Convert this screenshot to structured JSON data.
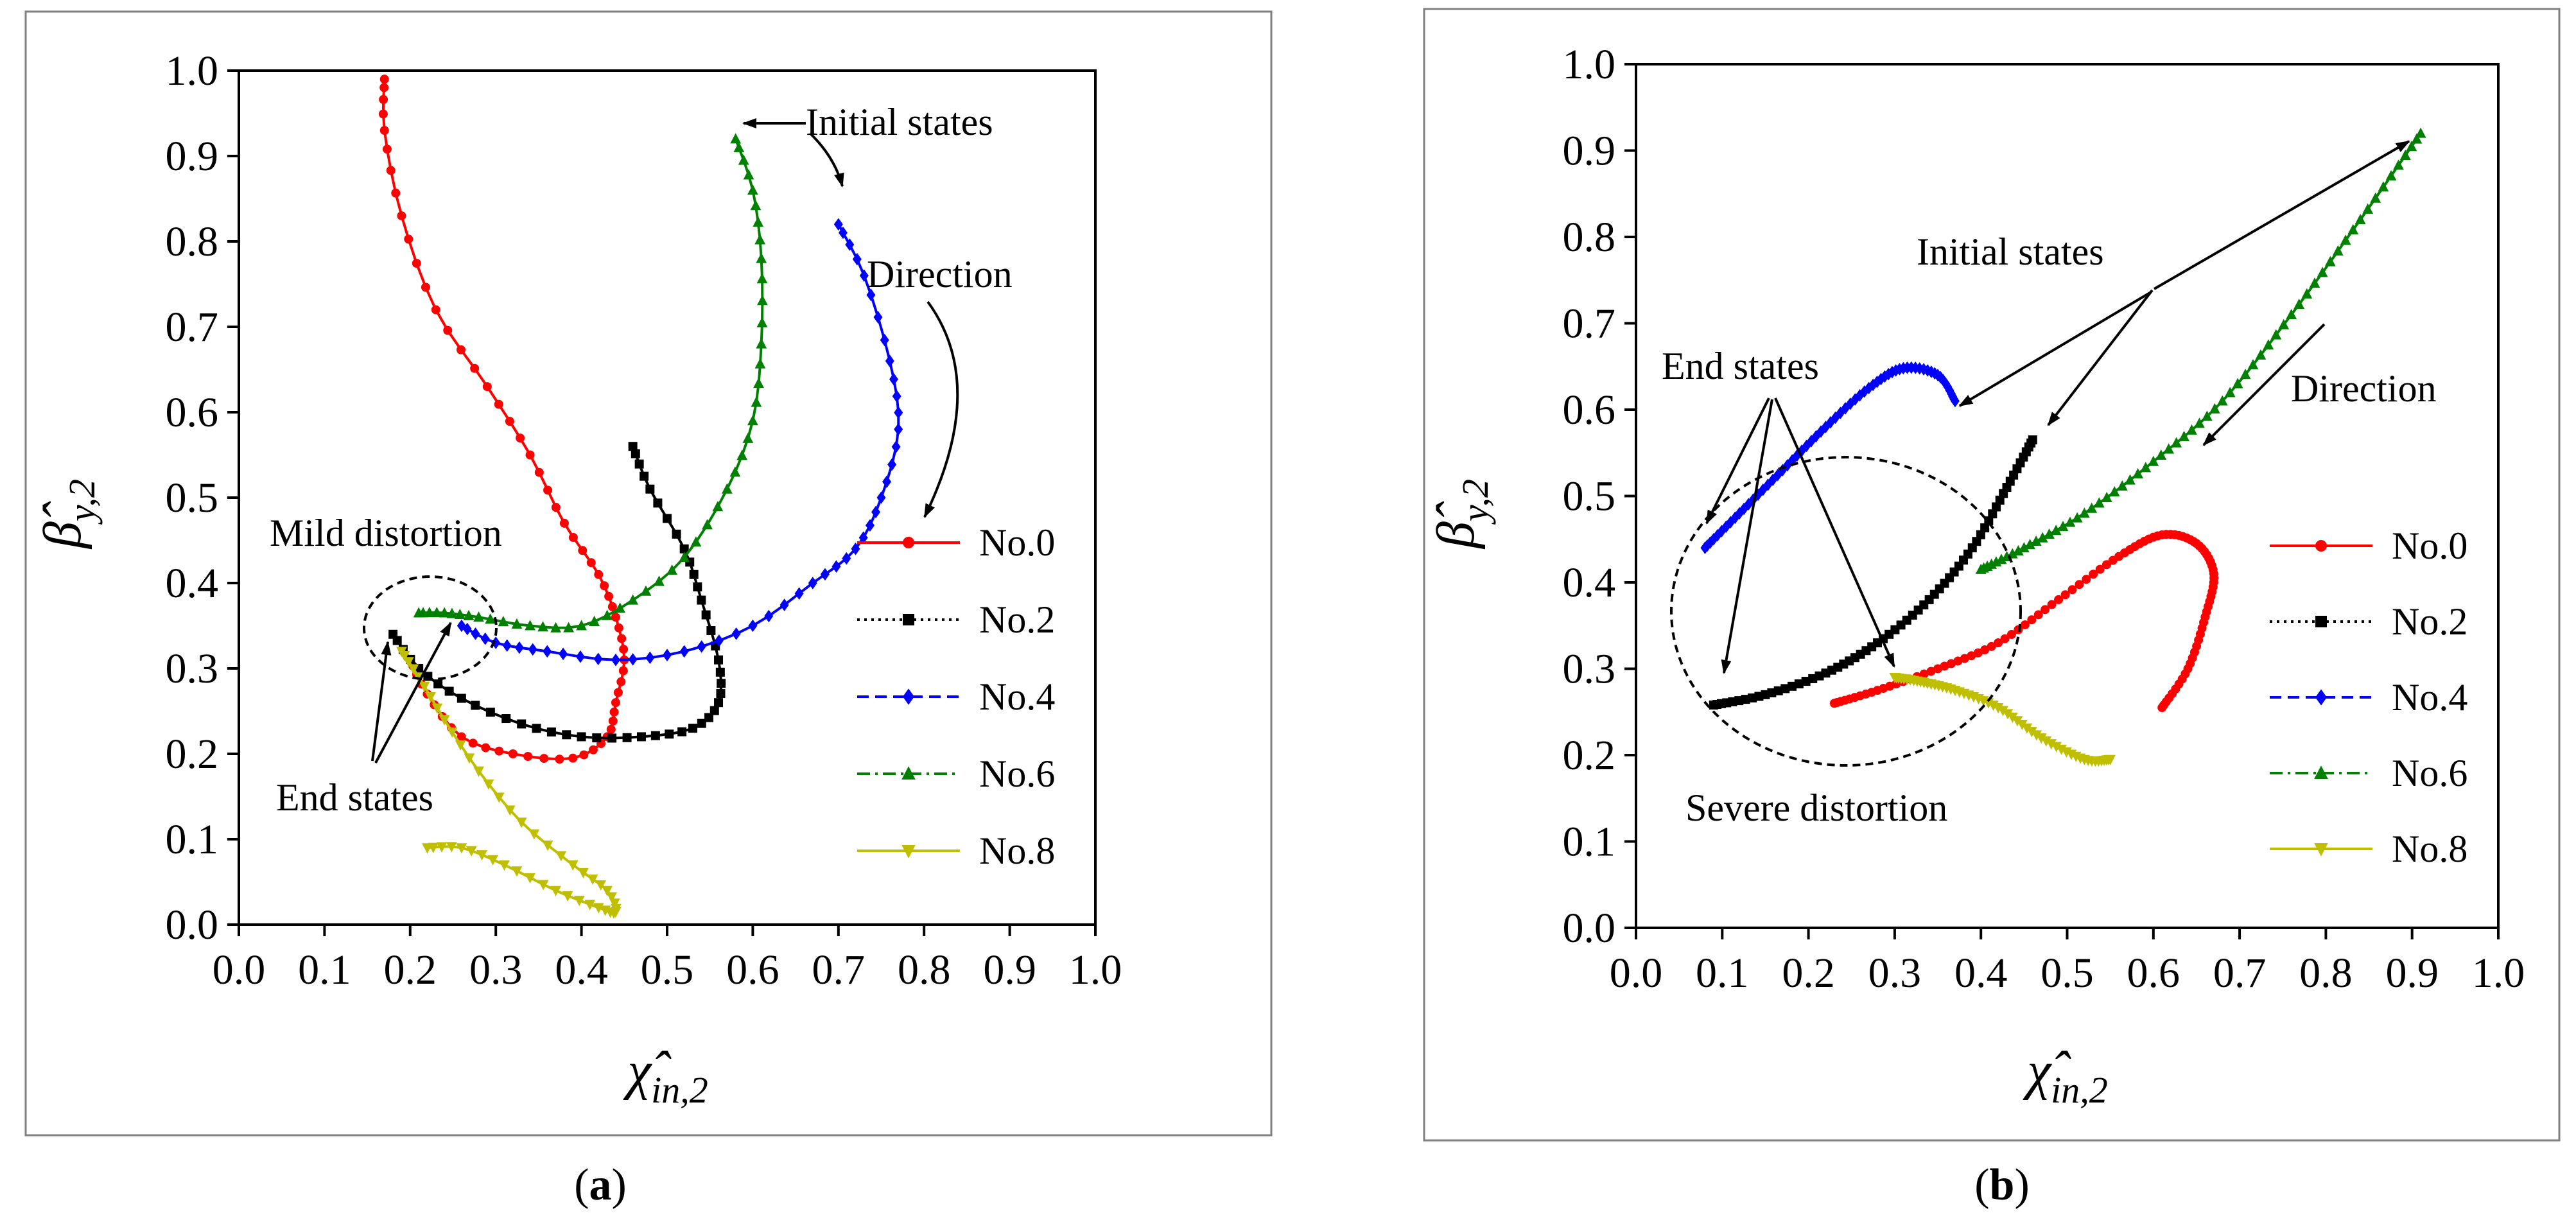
{
  "chart_data": [
    {
      "id": "a",
      "type": "line",
      "caption_open": "(",
      "caption_letter": "a",
      "caption_close": ")",
      "xlabel": "χ̂in,2",
      "ylabel": "β̂y,2",
      "xlim": [
        0.0,
        1.0
      ],
      "ylim": [
        0.0,
        1.0
      ],
      "xticks": [
        0.0,
        0.1,
        0.2,
        0.3,
        0.4,
        0.5,
        0.6,
        0.7,
        0.8,
        0.9,
        1.0
      ],
      "yticks": [
        0.0,
        0.1,
        0.2,
        0.3,
        0.4,
        0.5,
        0.6,
        0.7,
        0.8,
        0.9,
        1.0
      ],
      "xtick_labels": [
        "0.0",
        "0.1",
        "0.2",
        "0.3",
        "0.4",
        "0.5",
        "0.6",
        "0.7",
        "0.8",
        "0.9",
        "1.0"
      ],
      "ytick_labels": [
        "0.0",
        "0.1",
        "0.2",
        "0.3",
        "0.4",
        "0.5",
        "0.6",
        "0.7",
        "0.8",
        "0.9",
        "1.0"
      ],
      "legend_position": "right",
      "series": [
        {
          "name": "No.0",
          "color": "#ff0000",
          "marker": "circle",
          "dash": "solid",
          "points": [
            [
              0.17,
              0.99
            ],
            [
              0.17,
              0.93
            ],
            [
              0.19,
              0.83
            ],
            [
              0.23,
              0.72
            ],
            [
              0.29,
              0.63
            ],
            [
              0.34,
              0.55
            ],
            [
              0.38,
              0.47
            ],
            [
              0.42,
              0.41
            ],
            [
              0.44,
              0.36
            ],
            [
              0.45,
              0.31
            ],
            [
              0.44,
              0.26
            ],
            [
              0.43,
              0.22
            ],
            [
              0.39,
              0.195
            ],
            [
              0.32,
              0.2
            ],
            [
              0.26,
              0.22
            ],
            [
              0.22,
              0.27
            ],
            [
              0.2,
              0.31
            ]
          ]
        },
        {
          "name": "No.2",
          "color": "#000000",
          "marker": "square",
          "dash": "dotted",
          "points": [
            [
              0.46,
              0.56
            ],
            [
              0.48,
              0.51
            ],
            [
              0.52,
              0.44
            ],
            [
              0.54,
              0.38
            ],
            [
              0.56,
              0.31
            ],
            [
              0.56,
              0.26
            ],
            [
              0.53,
              0.23
            ],
            [
              0.47,
              0.22
            ],
            [
              0.4,
              0.22
            ],
            [
              0.33,
              0.235
            ],
            [
              0.26,
              0.265
            ],
            [
              0.21,
              0.3
            ],
            [
              0.18,
              0.34
            ]
          ]
        },
        {
          "name": "No.4",
          "color": "#0000ff",
          "marker": "diamond",
          "dash": "dashed",
          "points": [
            [
              0.7,
              0.82
            ],
            [
              0.73,
              0.76
            ],
            [
              0.76,
              0.66
            ],
            [
              0.77,
              0.58
            ],
            [
              0.75,
              0.5
            ],
            [
              0.72,
              0.44
            ],
            [
              0.67,
              0.4
            ],
            [
              0.6,
              0.35
            ],
            [
              0.52,
              0.32
            ],
            [
              0.44,
              0.31
            ],
            [
              0.36,
              0.32
            ],
            [
              0.3,
              0.33
            ],
            [
              0.26,
              0.35
            ]
          ]
        },
        {
          "name": "No.6",
          "color": "#008000",
          "marker": "triangle-up",
          "dash": "dashdot",
          "points": [
            [
              0.58,
              0.92
            ],
            [
              0.6,
              0.86
            ],
            [
              0.61,
              0.78
            ],
            [
              0.61,
              0.68
            ],
            [
              0.6,
              0.59
            ],
            [
              0.57,
              0.51
            ],
            [
              0.52,
              0.43
            ],
            [
              0.46,
              0.38
            ],
            [
              0.4,
              0.35
            ],
            [
              0.34,
              0.35
            ],
            [
              0.28,
              0.36
            ],
            [
              0.24,
              0.365
            ],
            [
              0.21,
              0.365
            ]
          ]
        },
        {
          "name": "No.8",
          "color": "#bfbf00",
          "marker": "triangle-down",
          "dash": "solid",
          "points": [
            [
              0.22,
              0.09
            ],
            [
              0.26,
              0.09
            ],
            [
              0.31,
              0.07
            ],
            [
              0.37,
              0.04
            ],
            [
              0.42,
              0.02
            ],
            [
              0.44,
              0.015
            ],
            [
              0.43,
              0.04
            ],
            [
              0.39,
              0.07
            ],
            [
              0.33,
              0.12
            ],
            [
              0.28,
              0.18
            ],
            [
              0.24,
              0.24
            ],
            [
              0.21,
              0.29
            ],
            [
              0.19,
              0.32
            ]
          ]
        }
      ],
      "annotations": {
        "initial_states": "Initial states",
        "direction": "Direction",
        "distortion": "Mild distortion",
        "end_states": "End states"
      }
    },
    {
      "id": "b",
      "type": "line",
      "caption_open": "(",
      "caption_letter": "b",
      "caption_close": ")",
      "xlabel": "χ̂in,2",
      "ylabel": "β̂y,2",
      "xlim": [
        0.0,
        1.0
      ],
      "ylim": [
        0.0,
        1.0
      ],
      "xticks": [
        0.0,
        0.1,
        0.2,
        0.3,
        0.4,
        0.5,
        0.6,
        0.7,
        0.8,
        0.9,
        1.0
      ],
      "yticks": [
        0.0,
        0.1,
        0.2,
        0.3,
        0.4,
        0.5,
        0.6,
        0.7,
        0.8,
        0.9,
        1.0
      ],
      "xtick_labels": [
        "0.0",
        "0.1",
        "0.2",
        "0.3",
        "0.4",
        "0.5",
        "0.6",
        "0.7",
        "0.8",
        "0.9",
        "1.0"
      ],
      "ytick_labels": [
        "0.0",
        "0.1",
        "0.2",
        "0.3",
        "0.4",
        "0.5",
        "0.6",
        "0.7",
        "0.8",
        "0.9",
        "1.0"
      ],
      "legend_position": "right",
      "series": [
        {
          "name": "No.0",
          "color": "#ff0000",
          "marker": "circle",
          "dash": "solid",
          "points": [
            [
              0.61,
              0.255
            ],
            [
              0.64,
              0.3
            ],
            [
              0.66,
              0.36
            ],
            [
              0.67,
              0.41
            ],
            [
              0.65,
              0.445
            ],
            [
              0.61,
              0.455
            ],
            [
              0.56,
              0.43
            ],
            [
              0.49,
              0.38
            ],
            [
              0.42,
              0.33
            ],
            [
              0.35,
              0.3
            ],
            [
              0.28,
              0.275
            ],
            [
              0.23,
              0.26
            ]
          ]
        },
        {
          "name": "No.2",
          "color": "#000000",
          "marker": "square",
          "dash": "dotted",
          "points": [
            [
              0.46,
              0.565
            ],
            [
              0.43,
              0.51
            ],
            [
              0.39,
              0.44
            ],
            [
              0.34,
              0.38
            ],
            [
              0.28,
              0.33
            ],
            [
              0.22,
              0.295
            ],
            [
              0.15,
              0.27
            ],
            [
              0.09,
              0.258
            ]
          ]
        },
        {
          "name": "No.4",
          "color": "#0000ff",
          "marker": "diamond",
          "dash": "dashed",
          "points": [
            [
              0.37,
              0.61
            ],
            [
              0.35,
              0.64
            ],
            [
              0.31,
              0.648
            ],
            [
              0.27,
              0.625
            ],
            [
              0.22,
              0.58
            ],
            [
              0.17,
              0.53
            ],
            [
              0.12,
              0.48
            ],
            [
              0.08,
              0.44
            ]
          ]
        },
        {
          "name": "No.6",
          "color": "#008000",
          "marker": "triangle-up",
          "dash": "dashdot",
          "points": [
            [
              0.91,
              0.92
            ],
            [
              0.84,
              0.82
            ],
            [
              0.76,
              0.71
            ],
            [
              0.68,
              0.61
            ],
            [
              0.6,
              0.54
            ],
            [
              0.52,
              0.48
            ],
            [
              0.45,
              0.44
            ],
            [
              0.4,
              0.415
            ]
          ]
        },
        {
          "name": "No.8",
          "color": "#bfbf00",
          "marker": "triangle-down",
          "dash": "solid",
          "points": [
            [
              0.55,
              0.195
            ],
            [
              0.52,
              0.195
            ],
            [
              0.47,
              0.22
            ],
            [
              0.42,
              0.255
            ],
            [
              0.37,
              0.275
            ],
            [
              0.33,
              0.285
            ],
            [
              0.3,
              0.29
            ]
          ]
        }
      ],
      "annotations": {
        "initial_states": "Initial states",
        "direction": "Direction",
        "distortion": "Severe distortion",
        "end_states": "End states"
      }
    }
  ]
}
